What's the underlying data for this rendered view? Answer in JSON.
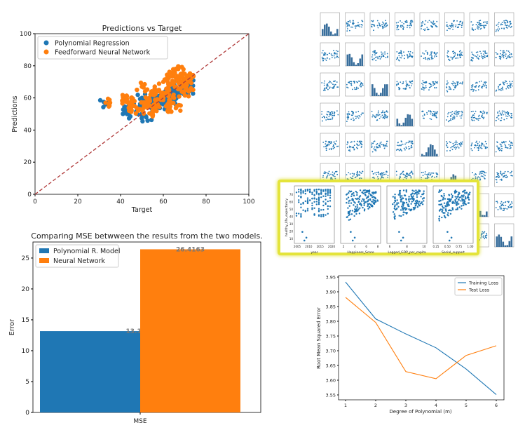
{
  "chart_data": [
    {
      "type": "scatter",
      "title": "Predictions vs Target",
      "xlabel": "Target",
      "ylabel": "Predictions",
      "xlim": [
        0,
        100
      ],
      "ylim": [
        0,
        100
      ],
      "xticks": [
        "0",
        "20",
        "40",
        "60",
        "80",
        "100"
      ],
      "yticks": [
        "0",
        "20",
        "40",
        "60",
        "80",
        "100"
      ],
      "legend": "top-left",
      "series": [
        {
          "name": "Polynomial Regression",
          "color": "#1f77b4",
          "points": [
            [
              33,
              56
            ],
            [
              43,
              50
            ],
            [
              43,
              54
            ],
            [
              44,
              56
            ],
            [
              48,
              52
            ],
            [
              50,
              56
            ],
            [
              50,
              60
            ],
            [
              52,
              48
            ],
            [
              53,
              58
            ],
            [
              55,
              55
            ],
            [
              56,
              53
            ],
            [
              57,
              60
            ],
            [
              58,
              57
            ],
            [
              60,
              62
            ],
            [
              61,
              59
            ],
            [
              62,
              64
            ],
            [
              63,
              60
            ],
            [
              64,
              66
            ],
            [
              65,
              63
            ],
            [
              66,
              62
            ],
            [
              67,
              65
            ],
            [
              68,
              68
            ],
            [
              69,
              66
            ],
            [
              70,
              70
            ],
            [
              71,
              67
            ],
            [
              72,
              69
            ],
            [
              72,
              65
            ],
            [
              60,
              56
            ],
            [
              55,
              58
            ],
            [
              64,
              58
            ]
          ]
        },
        {
          "name": "Feedforward Neural Network",
          "color": "#ff7f0e",
          "points": [
            [
              33,
              57
            ],
            [
              43,
              58
            ],
            [
              43,
              61
            ],
            [
              44,
              52
            ],
            [
              45,
              60
            ],
            [
              49,
              53
            ],
            [
              50,
              67
            ],
            [
              51,
              55
            ],
            [
              52,
              57
            ],
            [
              54,
              62
            ],
            [
              55,
              50
            ],
            [
              56,
              54
            ],
            [
              57,
              58
            ],
            [
              58,
              65
            ],
            [
              59,
              61
            ],
            [
              60,
              70
            ],
            [
              61,
              63
            ],
            [
              62,
              56
            ],
            [
              63,
              68
            ],
            [
              64,
              74
            ],
            [
              65,
              77
            ],
            [
              65,
              60
            ],
            [
              66,
              72
            ],
            [
              67,
              78
            ],
            [
              68,
              66
            ],
            [
              69,
              70
            ],
            [
              70,
              75
            ],
            [
              71,
              68
            ],
            [
              72,
              64
            ],
            [
              73,
              72
            ],
            [
              62,
              52
            ],
            [
              66,
              54
            ]
          ]
        },
        {
          "name": "y=x",
          "color": "#b03a3a",
          "points": [
            [
              0,
              0
            ],
            [
              100,
              100
            ]
          ]
        }
      ]
    },
    {
      "type": "bar",
      "title": "Comparing MSE betwween the results from the two models.",
      "xlabel": "",
      "ylabel": "Error",
      "ylim": [
        0,
        27.6
      ],
      "yticks": [
        "0",
        "5",
        "10",
        "15",
        "20",
        "25"
      ],
      "categories": [
        "MSE"
      ],
      "legend": "top-left",
      "series": [
        {
          "name": "Polynomial R. Model",
          "color": "#1f77b4",
          "values": [
            13.1673
          ],
          "label": "13.1673"
        },
        {
          "name": "Neural Network",
          "color": "#ff7f0e",
          "values": [
            26.4163
          ],
          "label": "26.4163"
        }
      ]
    },
    {
      "type": "line",
      "title": "",
      "xlabel": "Degree of Polynomial (m)",
      "ylabel": "Root Mean Squared Error",
      "ylim": [
        3.54,
        3.95
      ],
      "x": [
        1,
        2,
        3,
        4,
        5,
        6
      ],
      "xticks": [
        "1",
        "2",
        "3",
        "4",
        "5",
        "6"
      ],
      "yticks": [
        "3.55",
        "3.60",
        "3.65",
        "3.70",
        "3.75",
        "3.80",
        "3.85",
        "3.90",
        "3.95"
      ],
      "legend": "top-right",
      "series": [
        {
          "name": "Training Loss",
          "color": "#1f77b4",
          "values": [
            3.933,
            3.808,
            3.757,
            3.71,
            3.638,
            3.551
          ]
        },
        {
          "name": "Test Loss",
          "color": "#ff7f0e",
          "values": [
            3.881,
            3.796,
            3.629,
            3.605,
            3.684,
            3.717
          ]
        }
      ]
    },
    {
      "type": "scatter",
      "title": "",
      "ylabel": "healthy_life_expectancy",
      "highlight_color": "#e4e43a",
      "panels": [
        {
          "xlabel": "year",
          "xticks": [
            "2005",
            "2010",
            "2015",
            "2020"
          ]
        },
        {
          "xlabel": "Happiness_Score",
          "xticks": [
            "2",
            "4",
            "6",
            "8"
          ]
        },
        {
          "xlabel": "Logged_GDP_per_capita",
          "xticks": [
            "6",
            "8",
            "10"
          ]
        },
        {
          "xlabel": "Social_support",
          "xticks": [
            "0.25",
            "0.50",
            "0.75",
            "1.00"
          ]
        }
      ],
      "yticks": [
        "10",
        "20",
        "30",
        "40",
        "50",
        "60",
        "70"
      ]
    }
  ]
}
